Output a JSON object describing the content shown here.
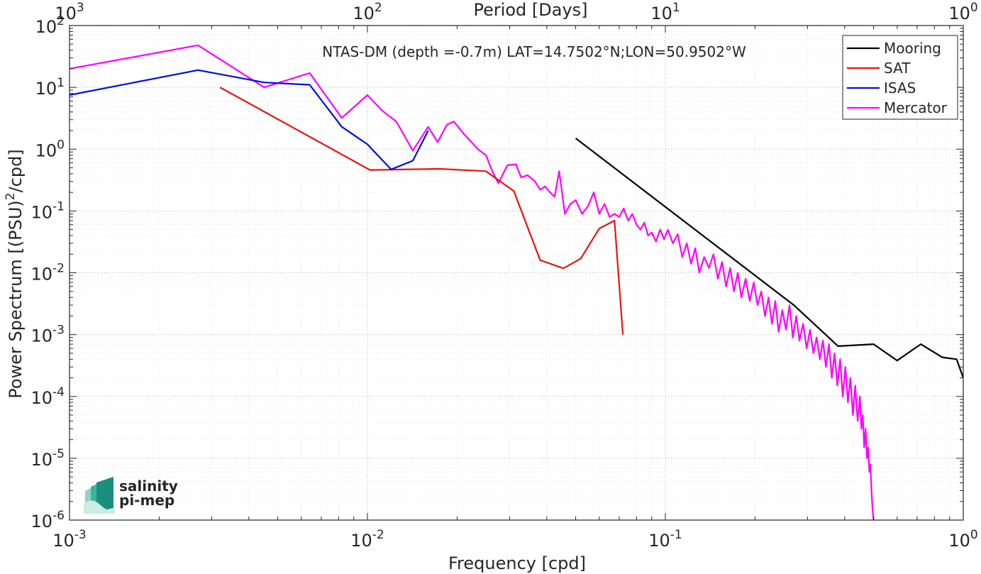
{
  "chart_data": {
    "type": "line",
    "title": "NTAS-DM (depth =-0.7m) LAT=14.7502°N;LON=50.9502°W",
    "xlabel": "Frequency [cpd]",
    "ylabel": "Power Spectrum [(PSU)²/cpd]",
    "ylabel_parts": {
      "before": "Power Spectrum [(PSU)",
      "sup": "2",
      "after": "/cpd]"
    },
    "top_xlabel": "Period [Days]",
    "x_scale": "log",
    "y_scale": "log",
    "xlim": [
      0.001,
      1
    ],
    "ylim": [
      1e-06,
      100
    ],
    "grid": true,
    "legend_position": "top-right",
    "x_ticks": [
      {
        "value": 0.001,
        "base": "10",
        "exp": "-3"
      },
      {
        "value": 0.01,
        "base": "10",
        "exp": "-2"
      },
      {
        "value": 0.1,
        "base": "10",
        "exp": "-1"
      },
      {
        "value": 1,
        "base": "10",
        "exp": "0"
      }
    ],
    "y_ticks": [
      {
        "value": 1e-06,
        "base": "10",
        "exp": "-6"
      },
      {
        "value": 1e-05,
        "base": "10",
        "exp": "-5"
      },
      {
        "value": 0.0001,
        "base": "10",
        "exp": "-4"
      },
      {
        "value": 0.001,
        "base": "10",
        "exp": "-3"
      },
      {
        "value": 0.01,
        "base": "10",
        "exp": "-2"
      },
      {
        "value": 0.1,
        "label": "10",
        "tag": "-1"
      },
      {
        "value": 1,
        "label": "10",
        "tag": "0"
      },
      {
        "value": 10,
        "label": "10",
        "tag": "1"
      },
      {
        "value": 100,
        "base": "10",
        "exp": "2"
      }
    ],
    "top_ticks": [
      {
        "freq": 0.001,
        "base": "10",
        "exp": "3"
      },
      {
        "freq": 0.01,
        "base": "10",
        "exp": "2"
      },
      {
        "freq": 0.1,
        "base": "10",
        "exp": "1"
      },
      {
        "freq": 1,
        "base": "10",
        "exp": "0"
      }
    ],
    "series": [
      {
        "name": "Mooring",
        "color": "#000000",
        "x": [
          0.05,
          0.27,
          0.38,
          0.5,
          0.6,
          0.72,
          0.85,
          0.95,
          1.0
        ],
        "y": [
          1.5,
          0.003,
          0.00065,
          0.0007,
          0.00038,
          0.0007,
          0.00043,
          0.0004,
          0.0002
        ]
      },
      {
        "name": "SAT",
        "color": "#e8140f",
        "x": [
          0.0032,
          0.0102,
          0.0175,
          0.025,
          0.031,
          0.038,
          0.0455,
          0.052,
          0.06,
          0.0675,
          0.072
        ],
        "y": [
          10,
          0.46,
          0.48,
          0.44,
          0.21,
          0.016,
          0.0118,
          0.017,
          0.052,
          0.07,
          0.001
        ]
      },
      {
        "name": "ISAS",
        "color": "#0010d8",
        "x": [
          0.001,
          0.0027,
          0.0045,
          0.0064,
          0.0082,
          0.01,
          0.012,
          0.0142,
          0.016
        ],
        "y": [
          7.5,
          19,
          12,
          11,
          2.3,
          1.2,
          0.47,
          0.65,
          2.0
        ]
      },
      {
        "name": "Mercator",
        "color": "#ff00ff",
        "x": [
          0.001,
          0.0027,
          0.0045,
          0.0064,
          0.0082,
          0.01,
          0.0112,
          0.0125,
          0.0142,
          0.016,
          0.0172,
          0.0185,
          0.0195,
          0.021,
          0.0235,
          0.025,
          0.0262,
          0.0275,
          0.0295,
          0.0315,
          0.0328,
          0.0345,
          0.0365,
          0.038,
          0.0395,
          0.041,
          0.0425,
          0.044,
          0.046,
          0.048,
          0.05,
          0.0525,
          0.055,
          0.0575,
          0.06,
          0.0625,
          0.065,
          0.0675,
          0.07,
          0.0725,
          0.075,
          0.0775,
          0.08,
          0.0825,
          0.085,
          0.0875,
          0.09,
          0.093,
          0.096,
          0.099,
          0.102,
          0.106,
          0.11,
          0.114,
          0.118,
          0.122,
          0.126,
          0.13,
          0.135,
          0.14,
          0.145,
          0.15,
          0.155,
          0.16,
          0.165,
          0.17,
          0.175,
          0.18,
          0.186,
          0.192,
          0.198,
          0.204,
          0.21,
          0.216,
          0.222,
          0.228,
          0.234,
          0.24,
          0.247,
          0.254,
          0.261,
          0.268,
          0.275,
          0.282,
          0.29,
          0.298,
          0.306,
          0.314,
          0.322,
          0.33,
          0.338,
          0.346,
          0.354,
          0.362,
          0.37,
          0.378,
          0.386,
          0.394,
          0.402,
          0.41,
          0.418,
          0.426,
          0.434,
          0.442,
          0.45,
          0.455,
          0.46,
          0.465,
          0.47,
          0.475,
          0.48,
          0.484,
          0.488,
          0.492,
          0.496,
          0.5
        ],
        "y": [
          20,
          48,
          10,
          17,
          3.2,
          7.5,
          4.2,
          2.8,
          0.95,
          2.3,
          1.3,
          2.5,
          2.8,
          1.8,
          1.0,
          0.8,
          0.45,
          0.28,
          0.55,
          0.57,
          0.35,
          0.38,
          0.3,
          0.22,
          0.25,
          0.2,
          0.17,
          0.44,
          0.09,
          0.13,
          0.15,
          0.09,
          0.12,
          0.2,
          0.09,
          0.13,
          0.08,
          0.09,
          0.08,
          0.11,
          0.07,
          0.09,
          0.06,
          0.05,
          0.065,
          0.04,
          0.045,
          0.032,
          0.05,
          0.035,
          0.05,
          0.03,
          0.042,
          0.018,
          0.03,
          0.014,
          0.025,
          0.01,
          0.018,
          0.012,
          0.02,
          0.008,
          0.015,
          0.006,
          0.012,
          0.005,
          0.01,
          0.004,
          0.008,
          0.0035,
          0.007,
          0.003,
          0.005,
          0.002,
          0.004,
          0.0015,
          0.0035,
          0.0011,
          0.0025,
          0.0012,
          0.003,
          0.0009,
          0.002,
          0.0008,
          0.0015,
          0.0006,
          0.0012,
          0.0005,
          0.0009,
          0.0004,
          0.0008,
          0.0003,
          0.0007,
          0.0002,
          0.0005,
          0.00015,
          0.0004,
          0.0001,
          0.0003,
          8e-05,
          0.0002,
          5e-05,
          0.00015,
          4e-05,
          0.0001,
          3e-05,
          5e-05,
          1.5e-05,
          3e-05,
          1e-05,
          1.5e-05,
          6e-06,
          8e-06,
          3e-06,
          1.5e-06,
          1e-06
        ]
      }
    ]
  },
  "logo": {
    "line1": "salinity",
    "line2": "pi-mep"
  }
}
